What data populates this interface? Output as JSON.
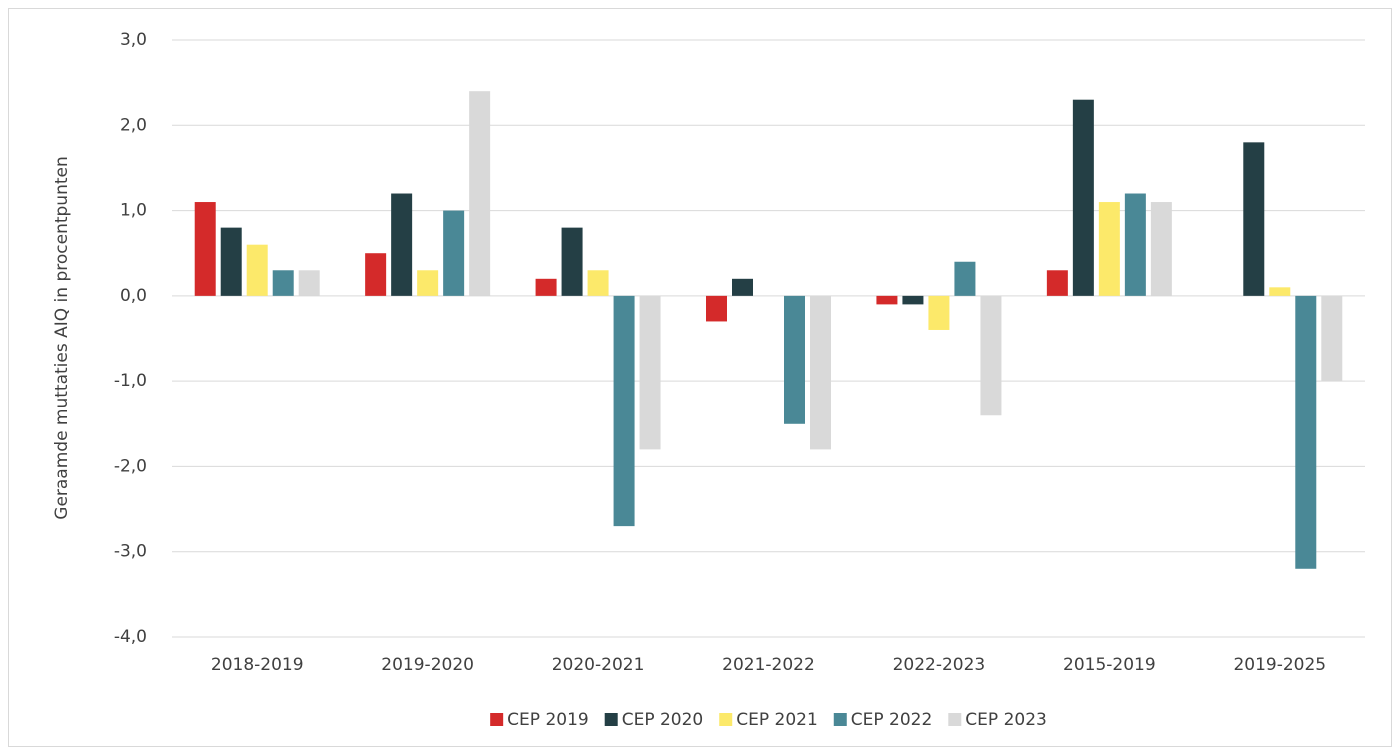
{
  "chart_data": {
    "type": "bar",
    "categories": [
      "2018-2019",
      "2019-2020",
      "2020-2021",
      "2021-2022",
      "2022-2023",
      "2015-2019",
      "2019-2025"
    ],
    "series": [
      {
        "name": "CEP 2019",
        "color": "#d42a2a",
        "values": [
          1.1,
          0.5,
          0.2,
          -0.3,
          -0.1,
          0.3,
          null
        ]
      },
      {
        "name": "CEP 2020",
        "color": "#243f45",
        "values": [
          0.8,
          1.2,
          0.8,
          0.2,
          -0.1,
          2.3,
          1.8
        ]
      },
      {
        "name": "CEP 2021",
        "color": "#fce96a",
        "values": [
          0.6,
          0.3,
          0.3,
          null,
          -0.4,
          1.1,
          0.1
        ]
      },
      {
        "name": "CEP 2022",
        "color": "#4a8896",
        "values": [
          0.3,
          1.0,
          -2.7,
          -1.5,
          0.4,
          1.2,
          -3.2
        ]
      },
      {
        "name": "CEP 2023",
        "color": "#d9d9d9",
        "values": [
          0.3,
          2.4,
          -1.8,
          -1.8,
          -1.4,
          1.1,
          -1.0
        ]
      }
    ],
    "y_label": "Geraamde muttaties AIQ in procentpunten",
    "ylim": [
      -4,
      3
    ],
    "yticks": [
      {
        "value": -4,
        "label": "-4,0"
      },
      {
        "value": -3,
        "label": "-3,0"
      },
      {
        "value": -2,
        "label": "-2,0"
      },
      {
        "value": -1,
        "label": "-1,0"
      },
      {
        "value": 0,
        "label": "0,0"
      },
      {
        "value": 1,
        "label": "1,0"
      },
      {
        "value": 2,
        "label": "2,0"
      },
      {
        "value": 3,
        "label": "3,0"
      }
    ],
    "grid": true,
    "legend": "bottom"
  }
}
